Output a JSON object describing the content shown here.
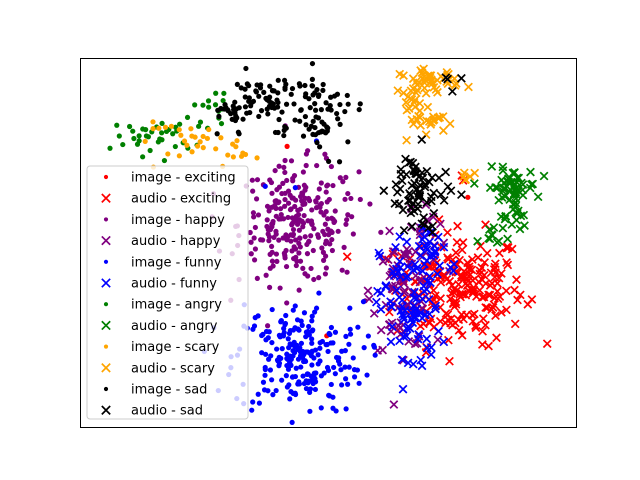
{
  "chart_data": {
    "type": "scatter",
    "title": "",
    "xlabel": "",
    "ylabel": "",
    "xlim": [
      -50,
      50
    ],
    "ylim": [
      -40,
      40
    ],
    "axes_ticks": false,
    "grid": false,
    "legend_position": "center-left",
    "series": [
      {
        "name": "image - exciting",
        "marker": "dot",
        "color": "#ff0000",
        "clusters": [
          {
            "cx": 0.0,
            "cy": -21.0,
            "sx": 0.8,
            "sy": 0.8,
            "n": 1
          },
          {
            "cx": -8.0,
            "cy": 20.0,
            "sx": 0.6,
            "sy": 0.6,
            "n": 1
          },
          {
            "cx": 28.0,
            "cy": 10.0,
            "sx": 0.5,
            "sy": 0.5,
            "n": 1
          }
        ]
      },
      {
        "name": "audio - exciting",
        "marker": "x",
        "color": "#ff0000",
        "clusters": [
          {
            "cx": 26.5,
            "cy": -10.0,
            "sx": 6.5,
            "sy": 6.0,
            "n": 210
          },
          {
            "cx": 27.0,
            "cy": 14.0,
            "sx": 0.7,
            "sy": 0.6,
            "n": 2
          }
        ]
      },
      {
        "name": "image - happy",
        "marker": "dot",
        "color": "#800080",
        "clusters": [
          {
            "cx": -6.0,
            "cy": 4.0,
            "sx": 6.0,
            "sy": 6.5,
            "n": 260
          }
        ]
      },
      {
        "name": "audio - happy",
        "marker": "x",
        "color": "#800080",
        "clusters": [
          {
            "cx": 15.0,
            "cy": -11.0,
            "sx": 3.0,
            "sy": 6.0,
            "n": 75
          },
          {
            "cx": 20.0,
            "cy": 3.0,
            "sx": 2.0,
            "sy": 3.0,
            "n": 15
          }
        ]
      },
      {
        "name": "image - funny",
        "marker": "dot",
        "color": "#0000ff",
        "clusters": [
          {
            "cx": -6.0,
            "cy": -25.0,
            "sx": 6.5,
            "sy": 6.0,
            "n": 230
          },
          {
            "cx": -9.0,
            "cy": 18.0,
            "sx": 3.0,
            "sy": 4.0,
            "n": 3
          }
        ]
      },
      {
        "name": "audio - funny",
        "marker": "x",
        "color": "#0000ff",
        "clusters": [
          {
            "cx": 16.5,
            "cy": -14.0,
            "sx": 3.0,
            "sy": 8.0,
            "n": 95
          },
          {
            "cx": 22.0,
            "cy": -2.0,
            "sx": 2.5,
            "sy": 3.0,
            "n": 20
          }
        ]
      },
      {
        "name": "image - angry",
        "marker": "dot",
        "color": "#008000",
        "clusters": [
          {
            "cx": -35.0,
            "cy": 23.0,
            "sx": 4.0,
            "sy": 2.0,
            "n": 35
          },
          {
            "cx": -23.0,
            "cy": 29.0,
            "sx": 2.0,
            "sy": 2.0,
            "n": 15
          }
        ]
      },
      {
        "name": "audio - angry",
        "marker": "x",
        "color": "#008000",
        "clusters": [
          {
            "cx": 37.0,
            "cy": 12.0,
            "sx": 2.5,
            "sy": 2.0,
            "n": 55
          },
          {
            "cx": 37.0,
            "cy": 6.0,
            "sx": 1.5,
            "sy": 2.0,
            "n": 15
          },
          {
            "cx": 33.5,
            "cy": 1.0,
            "sx": 1.5,
            "sy": 1.5,
            "n": 10
          }
        ]
      },
      {
        "name": "image - scary",
        "marker": "dot",
        "color": "#ffa500",
        "clusters": [
          {
            "cx": -27.0,
            "cy": 22.0,
            "sx": 6.0,
            "sy": 2.0,
            "n": 25
          },
          {
            "cx": -17.0,
            "cy": 20.0,
            "sx": 1.5,
            "sy": 2.0,
            "n": 10
          }
        ]
      },
      {
        "name": "audio - scary",
        "marker": "x",
        "color": "#ffa500",
        "clusters": [
          {
            "cx": 20.5,
            "cy": 35.0,
            "sx": 3.0,
            "sy": 1.2,
            "n": 40
          },
          {
            "cx": 17.5,
            "cy": 29.5,
            "sx": 1.3,
            "sy": 2.5,
            "n": 20
          },
          {
            "cx": 22.0,
            "cy": 26.0,
            "sx": 2.0,
            "sy": 1.2,
            "n": 15
          },
          {
            "cx": 28.0,
            "cy": 14.0,
            "sx": 1.0,
            "sy": 0.8,
            "n": 6
          }
        ]
      },
      {
        "name": "image - sad",
        "marker": "dot",
        "color": "#000000",
        "clusters": [
          {
            "cx": -10.0,
            "cy": 31.0,
            "sx": 6.0,
            "sy": 3.0,
            "n": 90
          },
          {
            "cx": -1.0,
            "cy": 25.0,
            "sx": 3.0,
            "sy": 3.0,
            "n": 40
          },
          {
            "cx": -20.0,
            "cy": 27.0,
            "sx": 2.0,
            "sy": 2.5,
            "n": 20
          }
        ]
      },
      {
        "name": "audio - sad",
        "marker": "x",
        "color": "#000000",
        "clusters": [
          {
            "cx": 18.0,
            "cy": 12.0,
            "sx": 3.0,
            "sy": 4.0,
            "n": 60
          },
          {
            "cx": 19.0,
            "cy": 4.0,
            "sx": 1.5,
            "sy": 1.5,
            "n": 10
          },
          {
            "cx": 25.0,
            "cy": 35.0,
            "sx": 1.0,
            "sy": 1.0,
            "n": 4
          }
        ]
      }
    ]
  }
}
